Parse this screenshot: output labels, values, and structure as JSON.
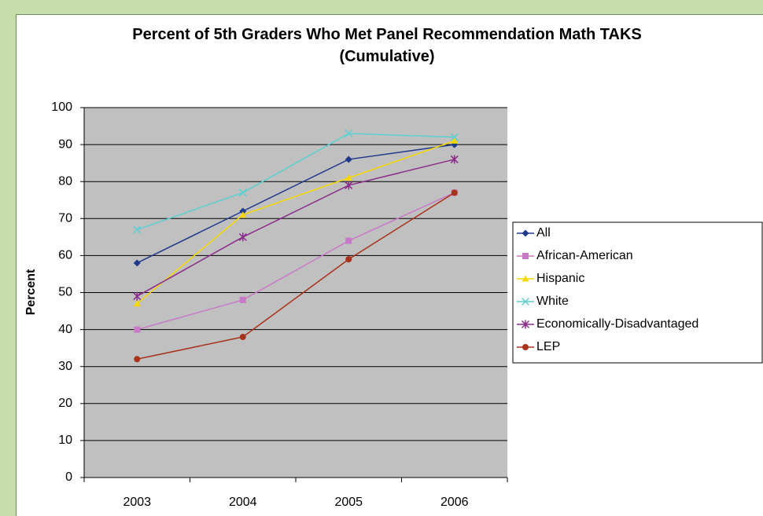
{
  "chart_data": {
    "type": "line",
    "title": "Percent of 5th Graders Who Met Panel Recommendation Math TAKS (Cumulative)",
    "y_label": "Percent",
    "categories": [
      "2003",
      "2004",
      "2005",
      "2006"
    ],
    "series": [
      {
        "name": "All",
        "color": "#1f3a8a",
        "marker": "diamond",
        "values": [
          58,
          72,
          86,
          90
        ]
      },
      {
        "name": "African-American",
        "color": "#c87ac8",
        "marker": "square",
        "values": [
          40,
          48,
          64,
          77
        ]
      },
      {
        "name": "Hispanic",
        "color": "#f5d800",
        "marker": "triangle",
        "values": [
          47,
          71,
          81,
          91
        ]
      },
      {
        "name": "White",
        "color": "#5ccfd0",
        "marker": "x",
        "values": [
          67,
          77,
          93,
          92
        ]
      },
      {
        "name": "Economically-Disadvantaged",
        "color": "#8a2d8a",
        "marker": "star",
        "values": [
          49,
          65,
          79,
          86
        ]
      },
      {
        "name": "LEP",
        "color": "#a8321a",
        "marker": "circle",
        "values": [
          32,
          38,
          59,
          77
        ]
      }
    ],
    "ylim": [
      0,
      100
    ],
    "yticks": [
      0,
      10,
      20,
      30,
      40,
      50,
      60,
      70,
      80,
      90,
      100
    ],
    "grid": true,
    "legend": "right"
  }
}
